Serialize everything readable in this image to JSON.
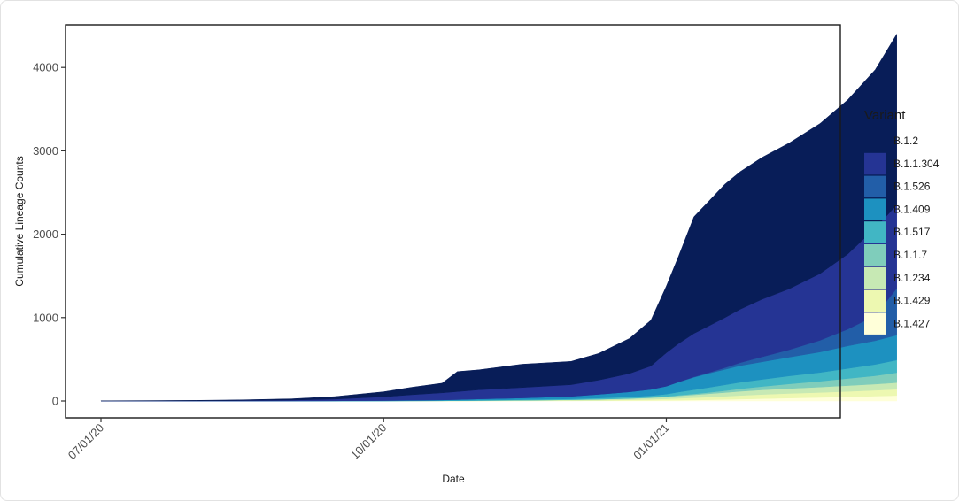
{
  "chart_data": {
    "type": "area",
    "stacked": true,
    "title": "",
    "xlabel": "Date",
    "ylabel": "Cumulative Lineage Counts",
    "x_ticks": [
      "07/01/20",
      "10/01/20",
      "01/01/21"
    ],
    "y_ticks": [
      0,
      1000,
      2000,
      3000,
      4000
    ],
    "ylim": [
      0,
      4300
    ],
    "xlim": [
      "2020-06-20",
      "2021-03-29"
    ],
    "grid": false,
    "legend": {
      "title": "Variant",
      "position": "right"
    },
    "x": [
      "2020-07-01",
      "2020-07-15",
      "2020-08-01",
      "2020-08-15",
      "2020-09-01",
      "2020-09-15",
      "2020-10-01",
      "2020-10-10",
      "2020-10-20",
      "2020-10-25",
      "2020-11-01",
      "2020-11-15",
      "2020-12-01",
      "2020-12-10",
      "2020-12-20",
      "2020-12-27",
      "2021-01-01",
      "2021-01-05",
      "2021-01-10",
      "2021-01-15",
      "2021-01-20",
      "2021-01-25",
      "2021-02-01",
      "2021-02-10",
      "2021-02-20",
      "2021-03-01",
      "2021-03-10",
      "2021-03-17"
    ],
    "series": [
      {
        "name": "B.1.427",
        "color": "#ffffd9",
        "values": [
          0,
          0,
          0,
          0,
          0,
          0,
          0,
          0,
          0,
          0,
          0,
          1,
          2,
          3,
          5,
          6,
          8,
          10,
          12,
          15,
          18,
          22,
          28,
          35,
          42,
          50,
          58,
          65
        ]
      },
      {
        "name": "B.1.429",
        "color": "#edf8b1",
        "values": [
          0,
          0,
          0,
          0,
          0,
          0,
          0,
          0,
          1,
          1,
          2,
          3,
          5,
          7,
          10,
          14,
          18,
          22,
          27,
          32,
          38,
          44,
          50,
          55,
          60,
          65,
          70,
          75
        ]
      },
      {
        "name": "B.1.234",
        "color": "#c7e9b4",
        "values": [
          0,
          0,
          0,
          0,
          0,
          0,
          0,
          1,
          1,
          2,
          3,
          5,
          8,
          10,
          14,
          18,
          22,
          28,
          34,
          40,
          45,
          50,
          55,
          60,
          65,
          70,
          75,
          80
        ]
      },
      {
        "name": "B.1.1.7",
        "color": "#7fcdbb",
        "values": [
          0,
          0,
          0,
          0,
          0,
          0,
          0,
          0,
          0,
          0,
          0,
          0,
          0,
          1,
          2,
          4,
          6,
          9,
          12,
          16,
          22,
          30,
          40,
          55,
          70,
          85,
          100,
          120
        ]
      },
      {
        "name": "B.1.517",
        "color": "#41b6c4",
        "values": [
          0,
          0,
          0,
          0,
          0,
          0,
          1,
          2,
          3,
          4,
          5,
          7,
          10,
          14,
          18,
          22,
          28,
          38,
          50,
          60,
          70,
          78,
          85,
          95,
          105,
          120,
          135,
          150
        ]
      },
      {
        "name": "B.1.409",
        "color": "#1d91c0",
        "values": [
          0,
          0,
          0,
          0,
          1,
          2,
          4,
          6,
          8,
          10,
          14,
          20,
          30,
          45,
          60,
          75,
          95,
          120,
          150,
          170,
          185,
          200,
          210,
          225,
          245,
          270,
          285,
          300
        ]
      },
      {
        "name": "B.1.526",
        "color": "#225ea8",
        "values": [
          0,
          0,
          0,
          0,
          0,
          0,
          0,
          0,
          0,
          0,
          0,
          0,
          0,
          0,
          0,
          0,
          0,
          2,
          5,
          10,
          20,
          35,
          60,
          90,
          140,
          200,
          300,
          560
        ]
      },
      {
        "name": "B.1.1.304",
        "color": "#253494",
        "values": [
          0,
          1,
          2,
          5,
          10,
          20,
          45,
          65,
          85,
          95,
          110,
          125,
          140,
          170,
          220,
          280,
          400,
          460,
          520,
          560,
          600,
          640,
          690,
          730,
          800,
          900,
          1050,
          1000
        ]
      },
      {
        "name": "B.1.2",
        "color": "#081d58",
        "values": [
          2,
          3,
          5,
          8,
          15,
          30,
          60,
          90,
          115,
          240,
          240,
          280,
          280,
          320,
          420,
          550,
          800,
          1050,
          1400,
          1500,
          1600,
          1650,
          1700,
          1750,
          1800,
          1850,
          1900,
          2050
        ]
      }
    ]
  }
}
